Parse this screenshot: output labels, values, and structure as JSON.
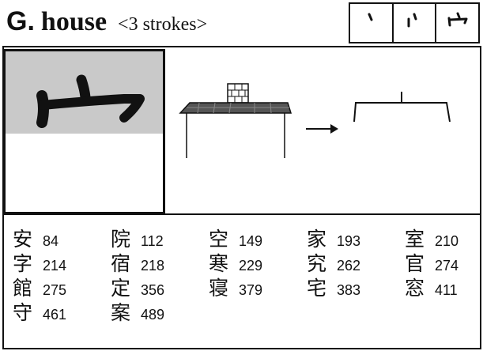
{
  "header": {
    "letter": "G.",
    "word": "house",
    "strokes": "<3 strokes>"
  },
  "stroke_order": [
    {
      "step": 1,
      "icon": "stroke-dot-icon"
    },
    {
      "step": 2,
      "icon": "stroke-dot-side-icon"
    },
    {
      "step": 3,
      "icon": "roof-radical-icon"
    }
  ],
  "radical": {
    "icon": "roof-radical-icon"
  },
  "illustration": {
    "icon": "house-to-radical-illustration"
  },
  "entries": [
    {
      "kanji": "安",
      "num": "84"
    },
    {
      "kanji": "院",
      "num": "112"
    },
    {
      "kanji": "空",
      "num": "149"
    },
    {
      "kanji": "家",
      "num": "193"
    },
    {
      "kanji": "室",
      "num": "210"
    },
    {
      "kanji": "字",
      "num": "214"
    },
    {
      "kanji": "宿",
      "num": "218"
    },
    {
      "kanji": "寒",
      "num": "229"
    },
    {
      "kanji": "究",
      "num": "262"
    },
    {
      "kanji": "官",
      "num": "274"
    },
    {
      "kanji": "館",
      "num": "275"
    },
    {
      "kanji": "定",
      "num": "356"
    },
    {
      "kanji": "寝",
      "num": "379"
    },
    {
      "kanji": "宅",
      "num": "383"
    },
    {
      "kanji": "窓",
      "num": "411"
    },
    {
      "kanji": "守",
      "num": "461"
    },
    {
      "kanji": "案",
      "num": "489"
    }
  ]
}
